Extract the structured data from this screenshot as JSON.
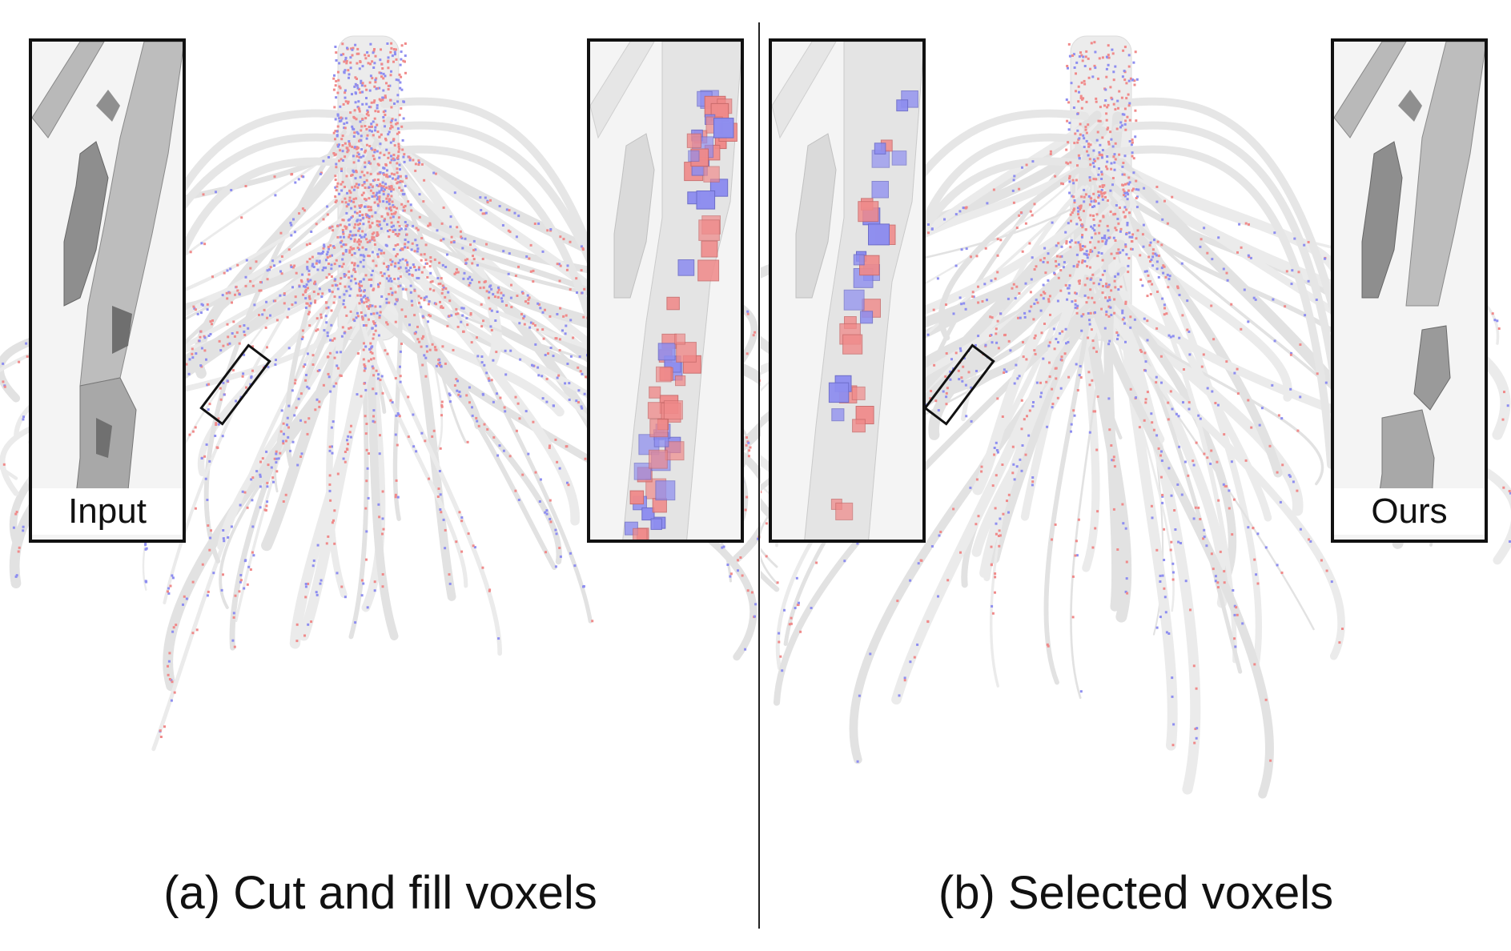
{
  "figure": {
    "panels": [
      {
        "caption": "(a) Cut and fill voxels"
      },
      {
        "caption": "(b) Selected voxels"
      }
    ],
    "insets": {
      "input_label": "Input",
      "ours_label": "Ours"
    },
    "colors": {
      "background": "#ffffff",
      "mesh": "#e6e6e6",
      "mesh_dark": "#9a9a9a",
      "cut_voxel": "#f08a8a",
      "fill_voxel": "#8e8ef0",
      "frame": "#111111"
    }
  }
}
